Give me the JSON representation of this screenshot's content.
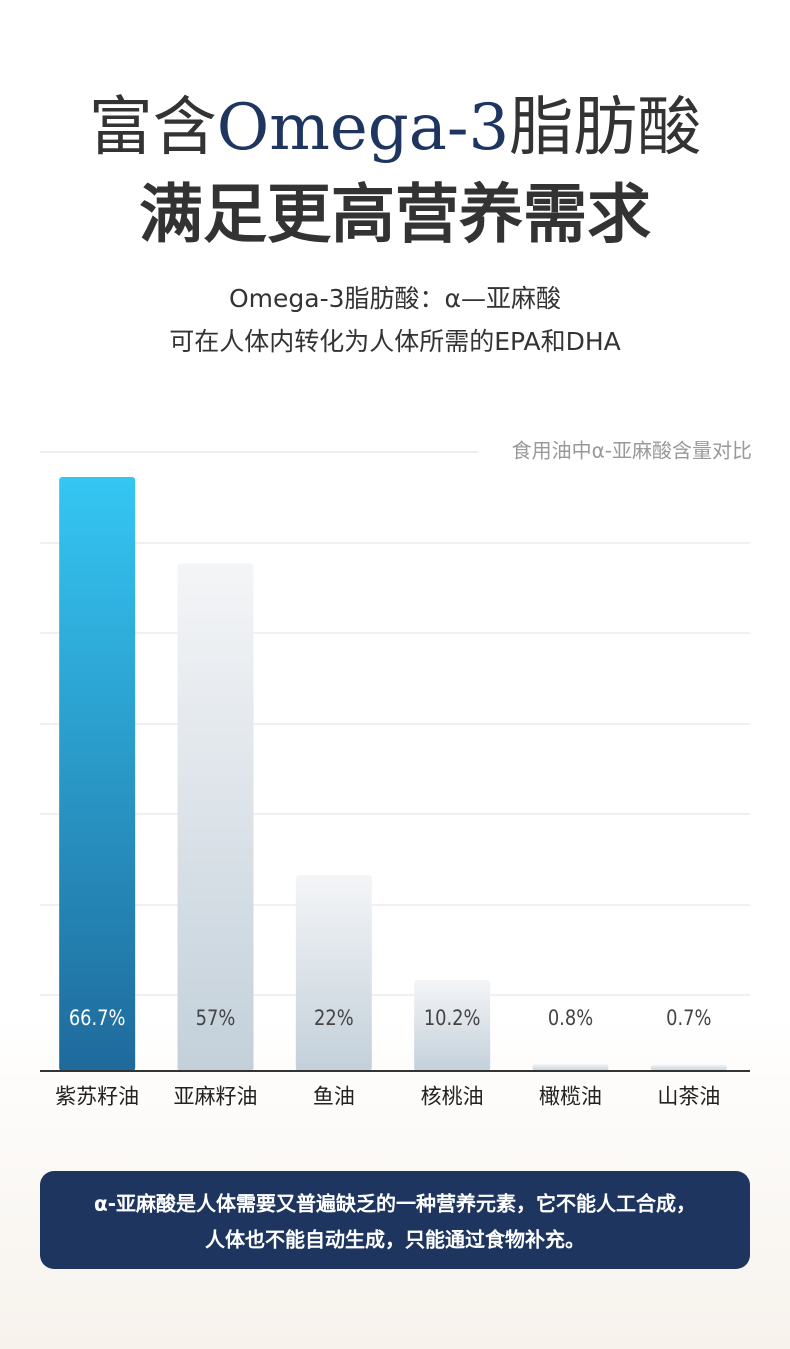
{
  "chart_data": {
    "type": "bar",
    "headline": [
      "富含",
      "Omega-3",
      "脂肪酸"
    ],
    "headline_2": "满足更高营养需求",
    "subtitle": [
      "Omega-3脂肪酸：α—亚麻酸",
      "可在人体内转化为人体所需的EPA和DHA"
    ],
    "caption": "食用油中α-亚麻酸含量对比",
    "categories": [
      "紫苏籽油",
      "亚麻籽油",
      "鱼油",
      "核桃油",
      "橄榄油",
      "山茶油"
    ],
    "values": [
      66.7,
      57,
      22,
      10.2,
      0.8,
      0.7
    ],
    "value_labels": [
      "66.7%",
      "57%",
      "22%",
      "10.2%",
      "0.8%",
      "0.7%"
    ],
    "colors": [
      [
        "#35c6f3",
        "#1e6a9b"
      ],
      [
        "#f4f5f7",
        "#c3d0da"
      ],
      [
        "#f4f5f7",
        "#c3d0da"
      ],
      [
        "#f4f5f7",
        "#c3d0da"
      ],
      [
        "#f4f5f7",
        "#c3d0da"
      ],
      [
        "#f4f5f7",
        "#c3d0da"
      ]
    ],
    "label_colors": [
      "#ffffff",
      "#444444",
      "#444444",
      "#444444",
      "#444444",
      "#444444"
    ],
    "note": [
      "α-亚麻酸是人体需要又普遍缺乏的一种营养元素，它不能人工合成，",
      "人体也不能自动生成，只能通过食物补充。"
    ]
  }
}
